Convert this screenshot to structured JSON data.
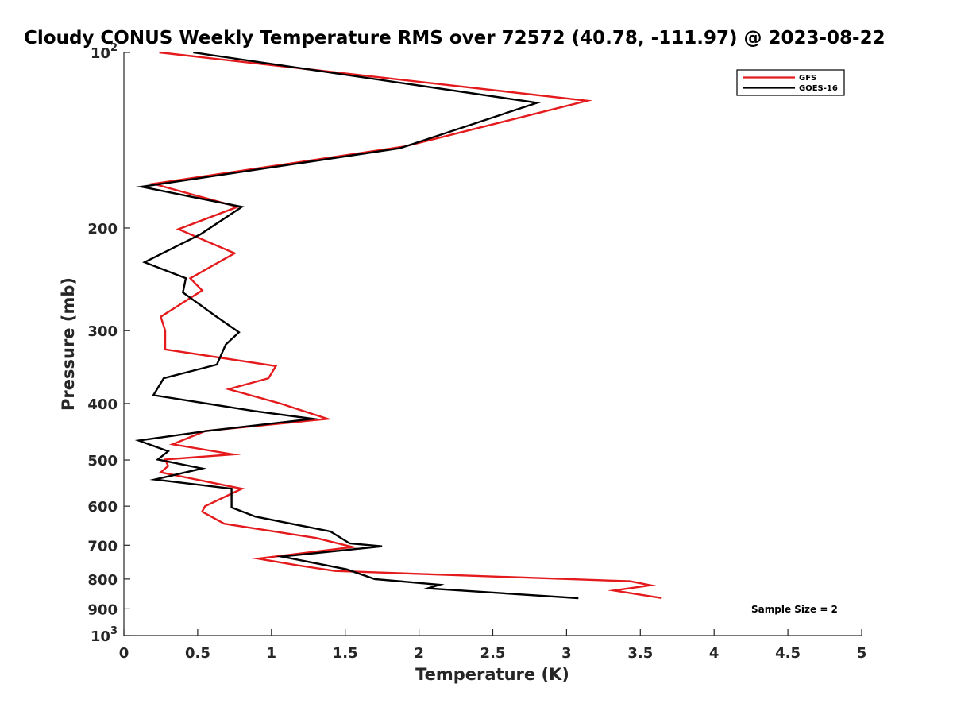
{
  "chart_data": {
    "type": "line",
    "title": "Cloudy CONUS Weekly Temperature RMS over 72572 (40.78, -111.97) @ 2023-08-22",
    "xlabel": "Temperature (K)",
    "ylabel": "Pressure (mb)",
    "xlim": [
      0,
      5
    ],
    "ylim": [
      100,
      1000
    ],
    "yscale": "log",
    "y_reversed": true,
    "grid": false,
    "legend_position": "top-right",
    "x_ticks": [
      0,
      0.5,
      1,
      1.5,
      2,
      2.5,
      3,
      3.5,
      4,
      4.5,
      5
    ],
    "x_tick_labels": [
      "0",
      "0.5",
      "1",
      "1.5",
      "2",
      "2.5",
      "3",
      "3.5",
      "4",
      "4.5",
      "5"
    ],
    "y_ticks": [
      100,
      200,
      300,
      400,
      500,
      600,
      700,
      800,
      900,
      1000
    ],
    "y_tick_labels": [
      {
        "base": "10",
        "exp": "2"
      },
      {
        "base": "200",
        "exp": ""
      },
      {
        "base": "300",
        "exp": ""
      },
      {
        "base": "400",
        "exp": ""
      },
      {
        "base": "500",
        "exp": ""
      },
      {
        "base": "600",
        "exp": ""
      },
      {
        "base": "700",
        "exp": ""
      },
      {
        "base": "800",
        "exp": ""
      },
      {
        "base": "900",
        "exp": ""
      },
      {
        "base": "10",
        "exp": "3"
      }
    ],
    "annotation": "Sample Size = 2",
    "series": [
      {
        "name": "GFS",
        "color": "#e41a1c",
        "points": [
          [
            0.24,
            100
          ],
          [
            3.14,
            121
          ],
          [
            1.9,
            145
          ],
          [
            0.2,
            168
          ],
          [
            0.77,
            184
          ],
          [
            0.37,
            201
          ],
          [
            0.75,
            221
          ],
          [
            0.45,
            244
          ],
          [
            0.53,
            256
          ],
          [
            0.25,
            284
          ],
          [
            0.28,
            300
          ],
          [
            0.28,
            323
          ],
          [
            1.03,
            345
          ],
          [
            0.98,
            362
          ],
          [
            0.71,
            378
          ],
          [
            1.06,
            400
          ],
          [
            1.38,
            425
          ],
          [
            0.55,
            446
          ],
          [
            0.33,
            470
          ],
          [
            0.74,
            489
          ],
          [
            0.28,
            499
          ],
          [
            0.3,
            512
          ],
          [
            0.25,
            525
          ],
          [
            0.8,
            560
          ],
          [
            0.55,
            600
          ],
          [
            0.53,
            613
          ],
          [
            0.68,
            643
          ],
          [
            1.3,
            680
          ],
          [
            1.55,
            705
          ],
          [
            0.91,
            738
          ],
          [
            1.18,
            758
          ],
          [
            1.43,
            775
          ],
          [
            3.43,
            807
          ],
          [
            3.57,
            820
          ],
          [
            3.32,
            837
          ],
          [
            3.64,
            862
          ]
        ]
      },
      {
        "name": "GOES-16",
        "color": "#000000",
        "points": [
          [
            0.47,
            100
          ],
          [
            2.8,
            122
          ],
          [
            1.87,
            146
          ],
          [
            0.12,
            170
          ],
          [
            0.8,
            184
          ],
          [
            0.52,
            205
          ],
          [
            0.14,
            229
          ],
          [
            0.42,
            244
          ],
          [
            0.4,
            258
          ],
          [
            0.62,
            283
          ],
          [
            0.78,
            302
          ],
          [
            0.69,
            317
          ],
          [
            0.63,
            343
          ],
          [
            0.27,
            362
          ],
          [
            0.2,
            387
          ],
          [
            0.88,
            412
          ],
          [
            1.28,
            425
          ],
          [
            0.56,
            446
          ],
          [
            0.1,
            463
          ],
          [
            0.3,
            483
          ],
          [
            0.23,
            499
          ],
          [
            0.53,
            517
          ],
          [
            0.21,
            540
          ],
          [
            0.73,
            560
          ],
          [
            0.73,
            603
          ],
          [
            0.89,
            625
          ],
          [
            1.4,
            663
          ],
          [
            1.53,
            695
          ],
          [
            1.75,
            703
          ],
          [
            1.07,
            732
          ],
          [
            1.51,
            770
          ],
          [
            1.7,
            800
          ],
          [
            2.14,
            818
          ],
          [
            2.06,
            830
          ],
          [
            3.08,
            863
          ]
        ]
      }
    ]
  }
}
